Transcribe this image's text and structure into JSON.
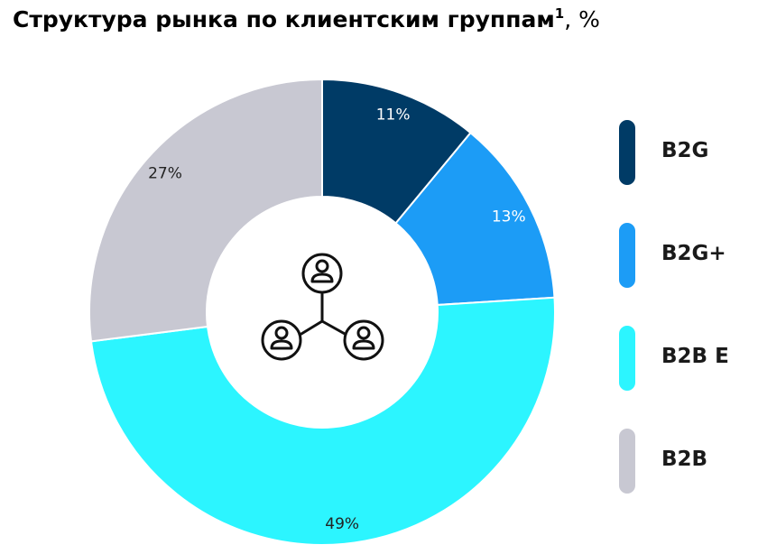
{
  "title": {
    "main": "Структура рынка по клиентским группам",
    "footnote": "1",
    "unit": ", %"
  },
  "center_icon": "people-network-icon",
  "chart_data": {
    "type": "pie",
    "variant": "donut",
    "title": "Структура рынка по клиентским группам¹, %",
    "legend_position": "right",
    "slices": [
      {
        "name": "B2G",
        "value": 11,
        "label": "11%",
        "color": "#003B66",
        "label_color": "#ffffff"
      },
      {
        "name": "B2G+",
        "value": 13,
        "label": "13%",
        "color": "#1C9CF6",
        "label_color": "#ffffff"
      },
      {
        "name": "B2B E",
        "value": 49,
        "label": "49%",
        "color": "#2CF5FF",
        "label_color": "#222222"
      },
      {
        "name": "B2B",
        "value": 27,
        "label": "27%",
        "color": "#C8C8D2",
        "label_color": "#222222"
      }
    ]
  }
}
